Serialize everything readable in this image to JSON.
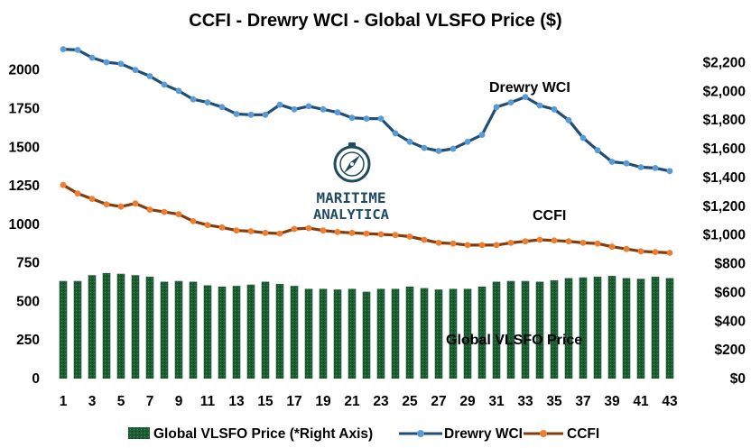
{
  "chart_data": {
    "type": "combo-bar-line",
    "title": "CCFI  - Drewry WCI  - Global VLSFO Price ($)",
    "x": [
      1,
      2,
      3,
      4,
      5,
      6,
      7,
      8,
      9,
      10,
      11,
      12,
      13,
      14,
      15,
      16,
      17,
      18,
      19,
      20,
      21,
      22,
      23,
      24,
      25,
      26,
      27,
      28,
      29,
      30,
      31,
      32,
      33,
      34,
      35,
      36,
      37,
      38,
      39,
      40,
      41,
      42,
      43
    ],
    "x_tick_labels": [
      "1",
      "3",
      "5",
      "7",
      "9",
      "11",
      "13",
      "15",
      "17",
      "19",
      "21",
      "23",
      "25",
      "27",
      "29",
      "31",
      "33",
      "35",
      "37",
      "39",
      "41",
      "43"
    ],
    "left_axis": {
      "ylim": [
        0,
        2100
      ],
      "ticks": [
        "0",
        "250",
        "500",
        "750",
        "1000",
        "1250",
        "1500",
        "1750",
        "2000"
      ],
      "tick_values": [
        0,
        250,
        500,
        750,
        1000,
        1250,
        1500,
        1750,
        2000
      ]
    },
    "right_axis": {
      "ylim": [
        0,
        2300
      ],
      "ticks": [
        "$0",
        "$200",
        "$400",
        "$600",
        "$800",
        "$1,000",
        "$1,200",
        "$1,400",
        "$1,600",
        "$1,800",
        "$2,000",
        "$2,200"
      ],
      "tick_values": [
        0,
        200,
        400,
        600,
        800,
        1000,
        1200,
        1400,
        1600,
        1800,
        2000,
        2200
      ]
    },
    "series": [
      {
        "name": "Global VLSFO Price (*Right Axis)",
        "type": "bar",
        "axis": "right",
        "color": "#1e5c36",
        "values": [
          680,
          680,
          720,
          735,
          730,
          720,
          710,
          675,
          680,
          675,
          650,
          640,
          645,
          655,
          675,
          660,
          645,
          625,
          625,
          620,
          625,
          605,
          625,
          625,
          640,
          630,
          620,
          625,
          625,
          640,
          675,
          680,
          680,
          675,
          685,
          700,
          705,
          710,
          715,
          700,
          695,
          710,
          700
        ]
      },
      {
        "name": "Drewry WCI",
        "type": "line",
        "axis": "left",
        "color": "#1f4e79",
        "marker_color": "#5b9bd5",
        "values": [
          2135,
          2130,
          2080,
          2050,
          2040,
          2000,
          1960,
          1905,
          1865,
          1810,
          1790,
          1760,
          1715,
          1710,
          1710,
          1775,
          1745,
          1765,
          1745,
          1725,
          1690,
          1685,
          1685,
          1590,
          1535,
          1495,
          1475,
          1490,
          1535,
          1580,
          1760,
          1790,
          1825,
          1770,
          1745,
          1675,
          1560,
          1480,
          1405,
          1395,
          1370,
          1365,
          1345
        ]
      },
      {
        "name": "CCFI",
        "type": "line",
        "axis": "left",
        "color": "#843c0c",
        "marker_color": "#ed7d31",
        "values": [
          1255,
          1200,
          1165,
          1130,
          1115,
          1135,
          1095,
          1080,
          1065,
          1020,
          995,
          980,
          960,
          955,
          945,
          940,
          970,
          975,
          960,
          950,
          945,
          940,
          935,
          930,
          920,
          900,
          880,
          875,
          865,
          865,
          865,
          880,
          890,
          900,
          895,
          890,
          880,
          875,
          855,
          840,
          825,
          820,
          815
        ]
      }
    ],
    "annotations": {
      "drewry_label": "Drewry WCI",
      "ccfi_label": "CCFI",
      "vlsfo_label": "Global VLSFO Price"
    },
    "legend": {
      "position": "bottom",
      "items": [
        "Global VLSFO Price (*Right Axis)",
        "Drewry WCI",
        "CCFI"
      ]
    }
  },
  "logo": {
    "line1": "MARITIME",
    "line2": "ANALYTICA"
  },
  "colors": {
    "bar": "#1e5c36",
    "drewry_line": "#1f4e79",
    "drewry_marker": "#5b9bd5",
    "ccfi_line": "#843c0c",
    "ccfi_marker": "#ed7d31",
    "logo": "#1f4a5f"
  }
}
